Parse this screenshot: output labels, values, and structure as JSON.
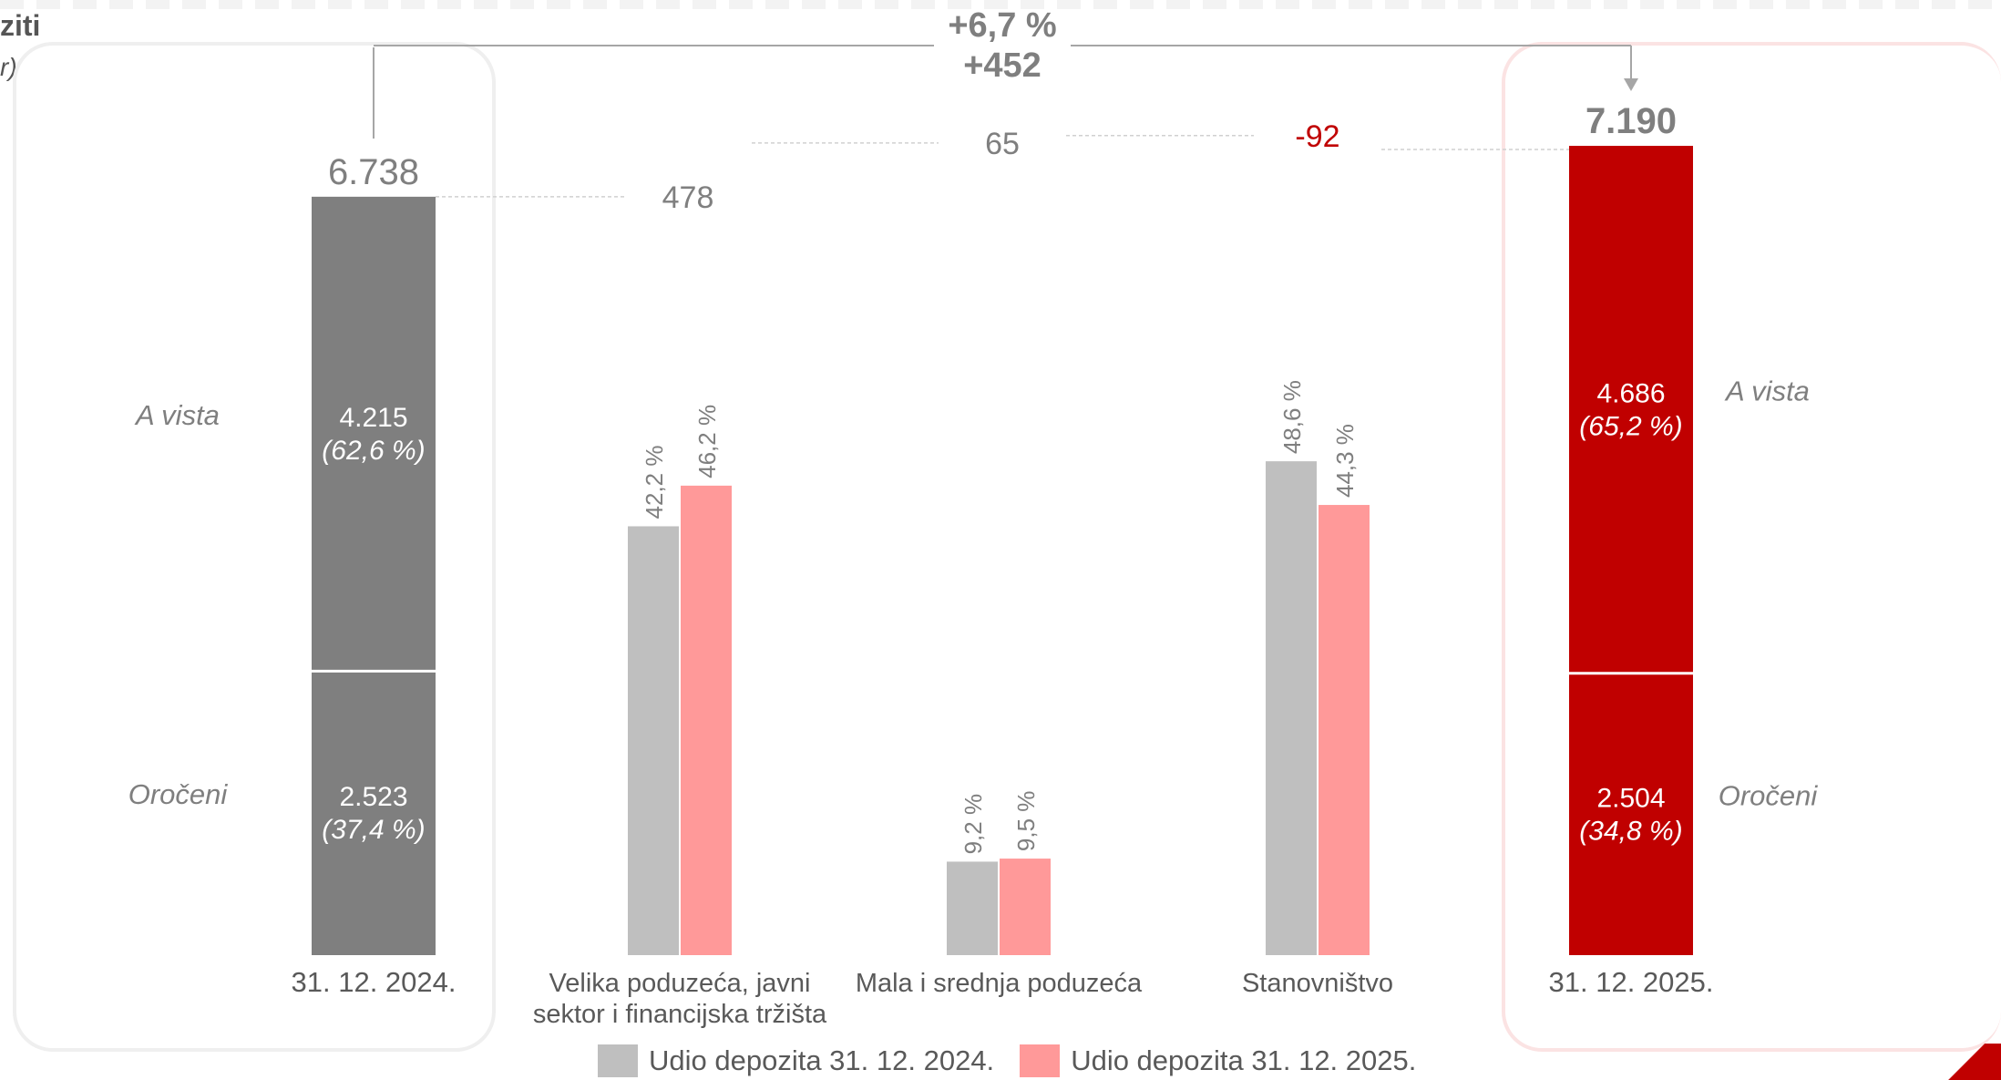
{
  "header": {
    "title_fragment": "ziti",
    "subtitle_fragment": "r)"
  },
  "colors": {
    "bar_2024": "#7f7f7f",
    "bar_2025": "#c00000",
    "share_2024": "#bfbfbf",
    "share_2025": "#ff9999",
    "negative_text": "#c00000",
    "text": "#595959"
  },
  "chart_data": {
    "type": "bar",
    "subtype": "waterfall",
    "change_percent_label": "+6,7 %",
    "change_abs_label": "+452",
    "totals": [
      {
        "date": "31. 12. 2024.",
        "total_label": "6.738",
        "total": 6738,
        "segments": [
          {
            "name": "A vista",
            "value": 4215,
            "value_label": "4.215",
            "share_label": "(62,6 %)"
          },
          {
            "name": "Oročeni",
            "value": 2523,
            "value_label": "2.523",
            "share_label": "(37,4 %)"
          }
        ]
      },
      {
        "date": "31. 12. 2025.",
        "total_label": "7.190",
        "total": 7190,
        "segments": [
          {
            "name": "A vista",
            "value": 4686,
            "value_label": "4.686",
            "share_label": "(65,2 %)"
          },
          {
            "name": "Oročeni",
            "value": 2504,
            "value_label": "2.504",
            "share_label": "(34,8 %)"
          }
        ]
      }
    ],
    "changes": [
      {
        "category": "Velika poduzeća, javni sektor i financijska tržišta",
        "category_lines": [
          "Velika poduzeća, javni",
          "sektor i financijska tržišta"
        ],
        "change": 478,
        "change_label": "478",
        "share_2024": 42.2,
        "share_2024_label": "42,2 %",
        "share_2025": 46.2,
        "share_2025_label": "46,2 %"
      },
      {
        "category": "Mala i srednja poduzeća",
        "category_lines": [
          "Mala i srednja poduzeća"
        ],
        "change": 65,
        "change_label": "65",
        "share_2024": 9.2,
        "share_2024_label": "9,2 %",
        "share_2025": 9.5,
        "share_2025_label": "9,5 %"
      },
      {
        "category": "Stanovništvo",
        "category_lines": [
          "Stanovništvo"
        ],
        "change": -92,
        "change_label": "-92",
        "share_2024": 48.6,
        "share_2024_label": "48,6 %",
        "share_2025": 44.3,
        "share_2025_label": "44,3 %"
      }
    ],
    "legend": [
      "Udio depozita 31. 12. 2024.",
      "Udio depozita 31. 12. 2025."
    ]
  }
}
